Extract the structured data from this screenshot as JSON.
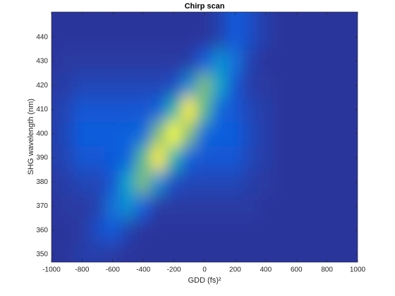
{
  "chart_data": {
    "type": "heatmap",
    "title": "Chirp scan",
    "xlabel": "GDD (fs)²",
    "ylabel": "SHG wavelength (nm)",
    "x": [
      -1000,
      -900,
      -800,
      -700,
      -600,
      -500,
      -400,
      -300,
      -200,
      -100,
      0,
      100,
      200,
      300,
      400,
      500,
      600,
      700,
      800,
      900,
      1000
    ],
    "y": [
      350,
      360,
      370,
      380,
      390,
      400,
      410,
      420,
      430,
      440
    ],
    "z": [
      [
        0.03,
        0.03,
        0.05,
        0.05,
        0.04,
        0.03,
        0.03,
        0.03,
        0.03,
        0.03,
        0.03,
        0.03,
        0.03,
        0.03,
        0.03,
        0.03,
        0.03,
        0.03,
        0.03,
        0.03,
        0.03
      ],
      [
        0.03,
        0.03,
        0.04,
        0.09,
        0.12,
        0.06,
        0.03,
        0.03,
        0.03,
        0.03,
        0.03,
        0.03,
        0.03,
        0.03,
        0.03,
        0.03,
        0.03,
        0.03,
        0.03,
        0.03,
        0.03
      ],
      [
        0.03,
        0.04,
        0.04,
        0.06,
        0.2,
        0.3,
        0.13,
        0.04,
        0.04,
        0.04,
        0.04,
        0.04,
        0.04,
        0.04,
        0.03,
        0.03,
        0.03,
        0.03,
        0.03,
        0.03,
        0.03
      ],
      [
        0.04,
        0.05,
        0.07,
        0.07,
        0.11,
        0.38,
        0.61,
        0.29,
        0.09,
        0.07,
        0.07,
        0.07,
        0.07,
        0.05,
        0.04,
        0.03,
        0.03,
        0.03,
        0.03,
        0.03,
        0.03
      ],
      [
        0.05,
        0.07,
        0.11,
        0.11,
        0.12,
        0.16,
        0.56,
        0.97,
        0.48,
        0.14,
        0.11,
        0.11,
        0.11,
        0.07,
        0.05,
        0.03,
        0.03,
        0.03,
        0.03,
        0.03,
        0.03
      ],
      [
        0.05,
        0.08,
        0.13,
        0.13,
        0.13,
        0.14,
        0.18,
        0.61,
        1,
        0.61,
        0.18,
        0.13,
        0.13,
        0.08,
        0.05,
        0.03,
        0.03,
        0.03,
        0.03,
        0.03,
        0.03
      ],
      [
        0.05,
        0.07,
        0.11,
        0.11,
        0.11,
        0.11,
        0.11,
        0.15,
        0.48,
        0.97,
        0.56,
        0.16,
        0.11,
        0.07,
        0.05,
        0.03,
        0.03,
        0.03,
        0.03,
        0.03,
        0.03
      ],
      [
        0.04,
        0.05,
        0.07,
        0.07,
        0.07,
        0.07,
        0.07,
        0.07,
        0.09,
        0.29,
        0.61,
        0.38,
        0.11,
        0.05,
        0.04,
        0.03,
        0.03,
        0.03,
        0.03,
        0.03,
        0.03
      ],
      [
        0.03,
        0.04,
        0.04,
        0.04,
        0.04,
        0.04,
        0.04,
        0.04,
        0.04,
        0.05,
        0.13,
        0.3,
        0.2,
        0.06,
        0.03,
        0.03,
        0.03,
        0.03,
        0.03,
        0.03,
        0.03
      ],
      [
        0.03,
        0.03,
        0.03,
        0.03,
        0.03,
        0.03,
        0.03,
        0.03,
        0.03,
        0.03,
        0.03,
        0.06,
        0.12,
        0.09,
        0.05,
        0.03,
        0.03,
        0.03,
        0.03,
        0.03,
        0.03
      ]
    ],
    "zlim": [
      0,
      1
    ],
    "colormap": [
      "#352a87",
      "#0f5cdd",
      "#1481d6",
      "#06a4ca",
      "#2eb7a4",
      "#87bf77",
      "#d1bb59",
      "#fec832",
      "#f9fb0e"
    ],
    "xlim": [
      -1000,
      1000
    ],
    "xticks": [
      -1000,
      -800,
      -600,
      -400,
      -200,
      0,
      200,
      400,
      600,
      800,
      1000
    ],
    "ylim": [
      346.8,
      450.4
    ],
    "yticks": [
      350,
      360,
      370,
      380,
      390,
      400,
      410,
      420,
      430,
      440
    ]
  }
}
